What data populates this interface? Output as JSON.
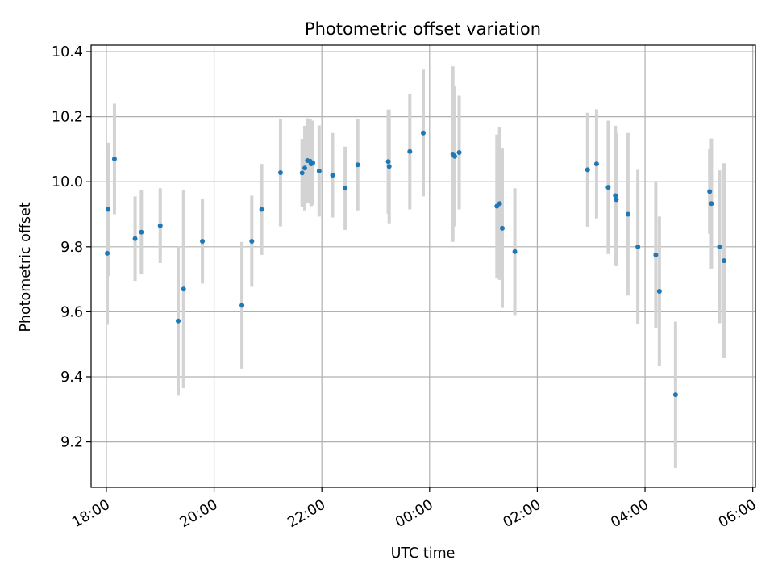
{
  "chart_data": {
    "type": "scatter",
    "title": "Photometric offset variation",
    "xlabel": "UTC time",
    "ylabel": "Photometric offset",
    "x_unit": "UTC time (HH:MM), spanning midnight",
    "xlim": [
      "17:43",
      "06:03"
    ],
    "ylim": [
      9.06,
      10.42
    ],
    "xticks": [
      "18:00",
      "20:00",
      "22:00",
      "00:00",
      "02:00",
      "04:00",
      "06:00"
    ],
    "yticks": [
      "9.2",
      "9.4",
      "9.6",
      "9.8",
      "10.0",
      "10.2",
      "10.4"
    ],
    "grid": true,
    "colors": {
      "marker": "#1f77b4",
      "errorbar": "#d3d3d3",
      "grid": "#b0b0b0"
    },
    "series": [
      {
        "points": [
          {
            "x": "18:01",
            "y": 9.78,
            "yerr": 0.22
          },
          {
            "x": "18:02",
            "y": 9.915,
            "yerr": 0.205
          },
          {
            "x": "18:09",
            "y": 10.07,
            "yerr": 0.17
          },
          {
            "x": "18:32",
            "y": 9.825,
            "yerr": 0.13
          },
          {
            "x": "18:39",
            "y": 9.845,
            "yerr": 0.13
          },
          {
            "x": "19:00",
            "y": 9.865,
            "yerr": 0.115
          },
          {
            "x": "19:20",
            "y": 9.572,
            "yerr": 0.23
          },
          {
            "x": "19:26",
            "y": 9.67,
            "yerr": 0.305
          },
          {
            "x": "19:47",
            "y": 9.817,
            "yerr": 0.13
          },
          {
            "x": "20:31",
            "y": 9.62,
            "yerr": 0.195
          },
          {
            "x": "20:42",
            "y": 9.817,
            "yerr": 0.14
          },
          {
            "x": "20:53",
            "y": 9.915,
            "yerr": 0.14
          },
          {
            "x": "21:14",
            "y": 10.028,
            "yerr": 0.165
          },
          {
            "x": "21:38",
            "y": 10.027,
            "yerr": 0.105
          },
          {
            "x": "21:41",
            "y": 10.042,
            "yerr": 0.13
          },
          {
            "x": "21:44",
            "y": 10.065,
            "yerr": 0.13
          },
          {
            "x": "21:47",
            "y": 10.063,
            "yerr": 0.13
          },
          {
            "x": "21:48",
            "y": 10.055,
            "yerr": 0.13
          },
          {
            "x": "21:50",
            "y": 10.058,
            "yerr": 0.13
          },
          {
            "x": "21:57",
            "y": 10.033,
            "yerr": 0.14
          },
          {
            "x": "22:12",
            "y": 10.02,
            "yerr": 0.13
          },
          {
            "x": "22:26",
            "y": 9.98,
            "yerr": 0.128
          },
          {
            "x": "22:40",
            "y": 10.052,
            "yerr": 0.14
          },
          {
            "x": "23:14",
            "y": 10.062,
            "yerr": 0.16
          },
          {
            "x": "23:15",
            "y": 10.047,
            "yerr": 0.175
          },
          {
            "x": "23:38",
            "y": 10.093,
            "yerr": 0.178
          },
          {
            "x": "23:53",
            "y": 10.15,
            "yerr": 0.195
          },
          {
            "x": "00:26",
            "y": 10.085,
            "yerr": 0.27
          },
          {
            "x": "00:28",
            "y": 10.078,
            "yerr": 0.215
          },
          {
            "x": "00:33",
            "y": 10.09,
            "yerr": 0.175
          },
          {
            "x": "01:15",
            "y": 9.925,
            "yerr": 0.22
          },
          {
            "x": "01:18",
            "y": 9.933,
            "yerr": 0.235
          },
          {
            "x": "01:21",
            "y": 9.857,
            "yerr": 0.245
          },
          {
            "x": "01:35",
            "y": 9.785,
            "yerr": 0.195
          },
          {
            "x": "02:56",
            "y": 10.037,
            "yerr": 0.175
          },
          {
            "x": "03:06",
            "y": 10.055,
            "yerr": 0.168
          },
          {
            "x": "03:19",
            "y": 9.983,
            "yerr": 0.205
          },
          {
            "x": "03:27",
            "y": 9.957,
            "yerr": 0.215
          },
          {
            "x": "03:28",
            "y": 9.945,
            "yerr": 0.205
          },
          {
            "x": "03:41",
            "y": 9.9,
            "yerr": 0.25
          },
          {
            "x": "03:52",
            "y": 9.8,
            "yerr": 0.237
          },
          {
            "x": "04:12",
            "y": 9.775,
            "yerr": 0.225
          },
          {
            "x": "04:16",
            "y": 9.663,
            "yerr": 0.23
          },
          {
            "x": "04:34",
            "y": 9.345,
            "yerr": 0.225
          },
          {
            "x": "05:12",
            "y": 9.97,
            "yerr": 0.13
          },
          {
            "x": "05:14",
            "y": 9.933,
            "yerr": 0.2
          },
          {
            "x": "05:23",
            "y": 9.8,
            "yerr": 0.235
          },
          {
            "x": "05:28",
            "y": 9.757,
            "yerr": 0.3
          }
        ]
      }
    ]
  }
}
